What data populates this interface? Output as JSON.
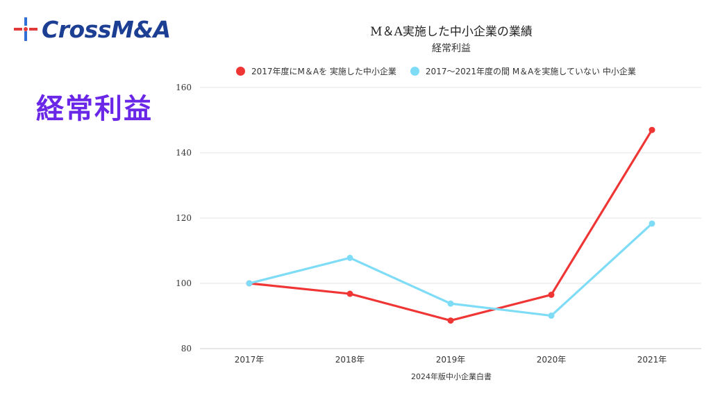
{
  "logo": {
    "text": "CrossM&A"
  },
  "heading": "経常利益",
  "chart_data": {
    "type": "line",
    "title": "M＆A実施した中小企業の業績",
    "subtitle": "経常利益",
    "categories": [
      "2017年",
      "2018年",
      "2019年",
      "2020年",
      "2021年"
    ],
    "series": [
      {
        "name": "2017年度にM＆Aを 実施した中小企業",
        "color": "#f03535",
        "values": [
          100,
          96.8,
          88.6,
          96.5,
          147
        ]
      },
      {
        "name": "2017～2021年度の間 M＆Aを実施していない 中小企業",
        "color": "#7fdcf7",
        "values": [
          100,
          107.8,
          93.8,
          90.1,
          118.3
        ]
      }
    ],
    "y_ticks": [
      "80",
      "100",
      "120",
      "140",
      "160"
    ],
    "ylim": [
      80,
      160
    ],
    "grid": true,
    "legend_position": "top",
    "source": "2024年版中小企業白書"
  }
}
